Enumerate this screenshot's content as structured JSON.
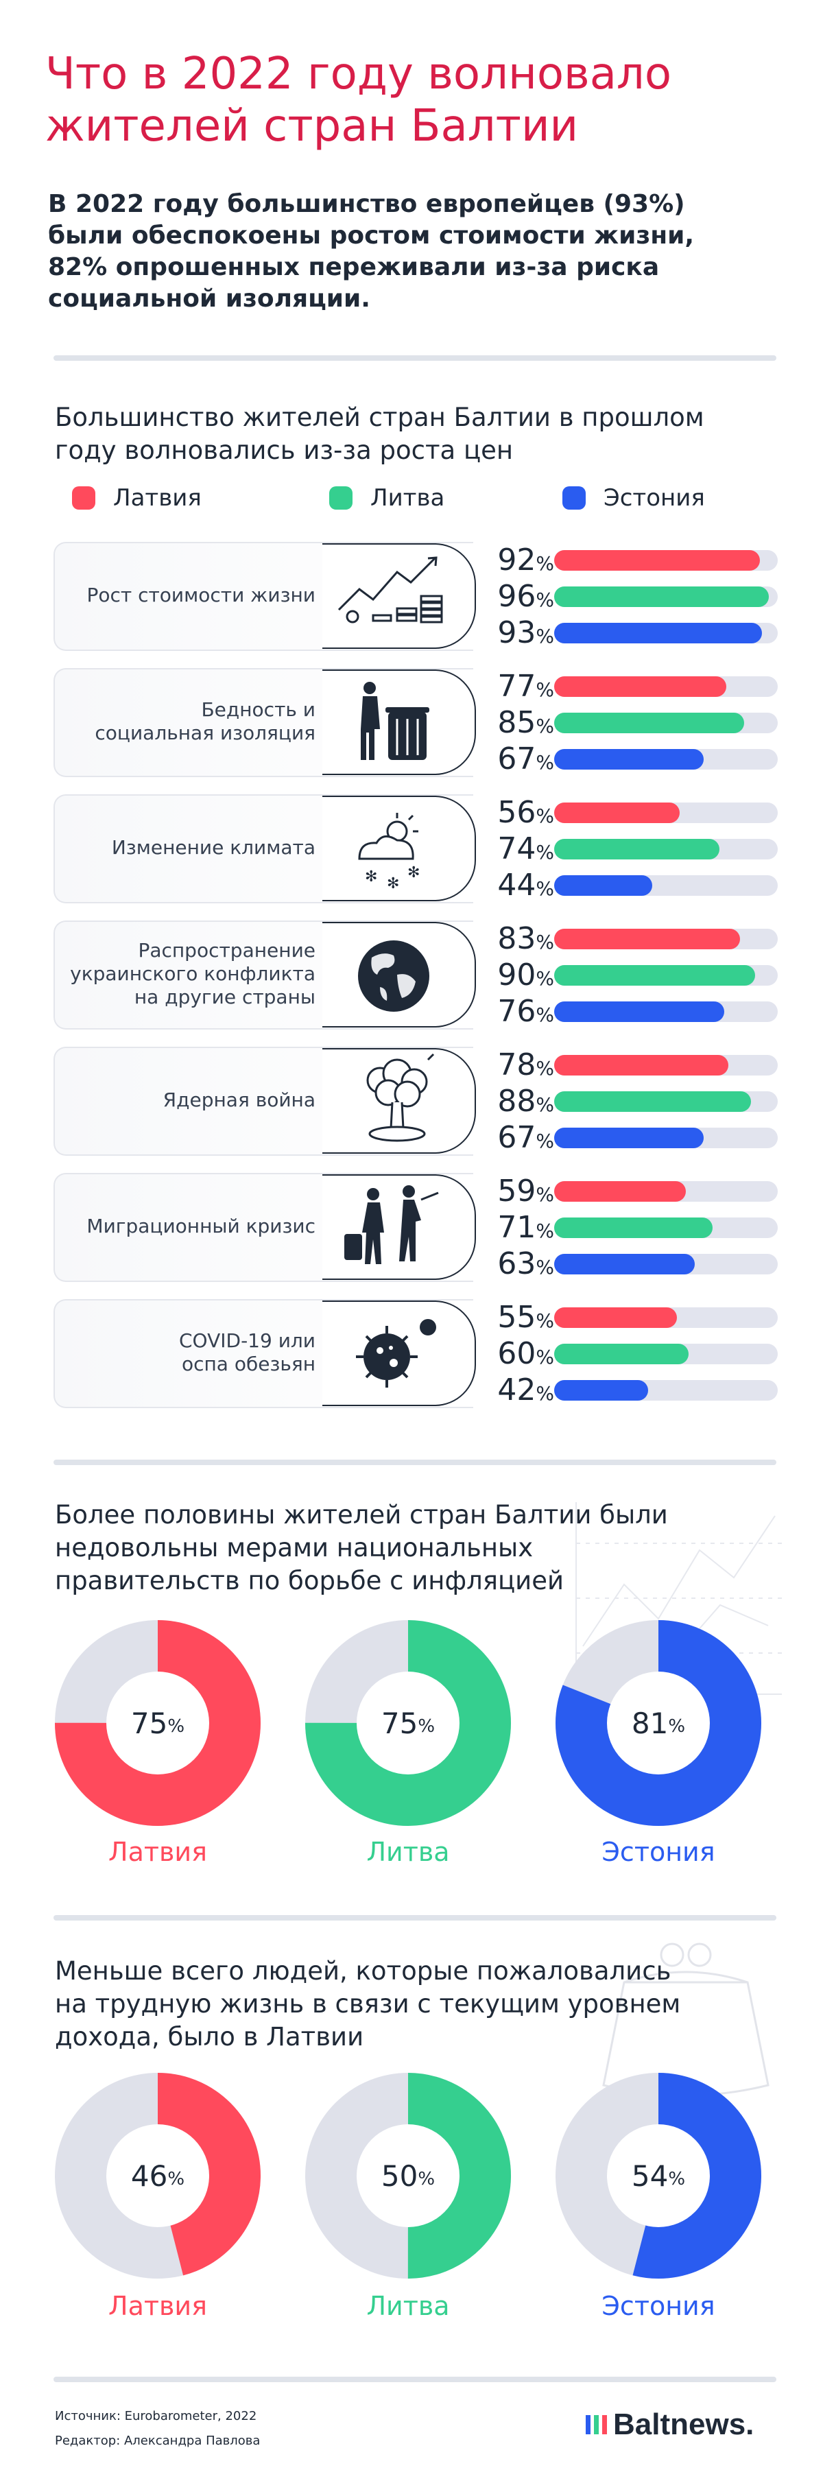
{
  "title": "Что в 2022 году волновало жителей стран Балтии",
  "intro": "В 2022 году большинство европейцев (93%) были обеспокоены ростом стоимости жизни, 82% опрошенных переживали из-за риска социальной изоляции.",
  "colors": {
    "latvia": "#ff4a5c",
    "lithuania": "#35cf8f",
    "estonia": "#2a5cf0",
    "track": "#e2e4ee",
    "title": "#d81e48"
  },
  "legend": [
    {
      "label": "Латвия",
      "color": "#ff4a5c"
    },
    {
      "label": "Литва",
      "color": "#35cf8f"
    },
    {
      "label": "Эстония",
      "color": "#2a5cf0"
    }
  ],
  "chart_data": [
    {
      "type": "bar",
      "orientation": "horizontal",
      "title": "Большинство жителей стран Балтии в прошлом году волновались из-за роста цен",
      "categories": [
        "Рост стоимости жизни",
        "Бедность и социальная изоляция",
        "Изменение климата",
        "Распространение украинского конфликта на другие страны",
        "Ядерная война",
        "Миграционный кризис",
        "COVID-19 или оспа обезьян"
      ],
      "unit": "%",
      "xlim": [
        0,
        100
      ],
      "series": [
        {
          "name": "Латвия",
          "values": [
            92,
            77,
            56,
            83,
            78,
            59,
            55
          ]
        },
        {
          "name": "Литва",
          "values": [
            96,
            85,
            74,
            90,
            88,
            71,
            60
          ]
        },
        {
          "name": "Эстония",
          "values": [
            93,
            67,
            44,
            76,
            67,
            63,
            42
          ]
        }
      ]
    },
    {
      "type": "pie",
      "title": "Более половины жителей стран Балтии были недовольны мерами национальных правительств по борьбе с инфляцией",
      "categories": [
        "Латвия",
        "Литва",
        "Эстония"
      ],
      "values": [
        75,
        75,
        81
      ],
      "unit": "%"
    },
    {
      "type": "pie",
      "title": "Меньше всего людей, которые пожаловались на трудную жизнь в связи с текущим уровнем дохода, было в Латвии",
      "categories": [
        "Латвия",
        "Литва",
        "Эстония"
      ],
      "values": [
        46,
        50,
        54
      ],
      "unit": "%"
    }
  ],
  "rows": [
    {
      "label": "Рост стоимости жизни",
      "icon": "money-growth-icon"
    },
    {
      "label": "Бедность и\nсоциальная изоляция",
      "icon": "poverty-icon"
    },
    {
      "label": "Изменение климата",
      "icon": "climate-icon"
    },
    {
      "label": "Распространение\nукраинского конфликта\nна другие страны",
      "icon": "globe-icon"
    },
    {
      "label": "Ядерная война",
      "icon": "nuclear-explosion-icon"
    },
    {
      "label": "Миграционный кризис",
      "icon": "migrants-icon"
    },
    {
      "label": "COVID-19 или\nоспа обезьян",
      "icon": "virus-icon"
    }
  ],
  "percent_sign": "%",
  "footer": {
    "source": "Источник: Eurobarometer, 2022",
    "editor": "Редактор: Александра Павлова",
    "brand": "Baltnews."
  }
}
